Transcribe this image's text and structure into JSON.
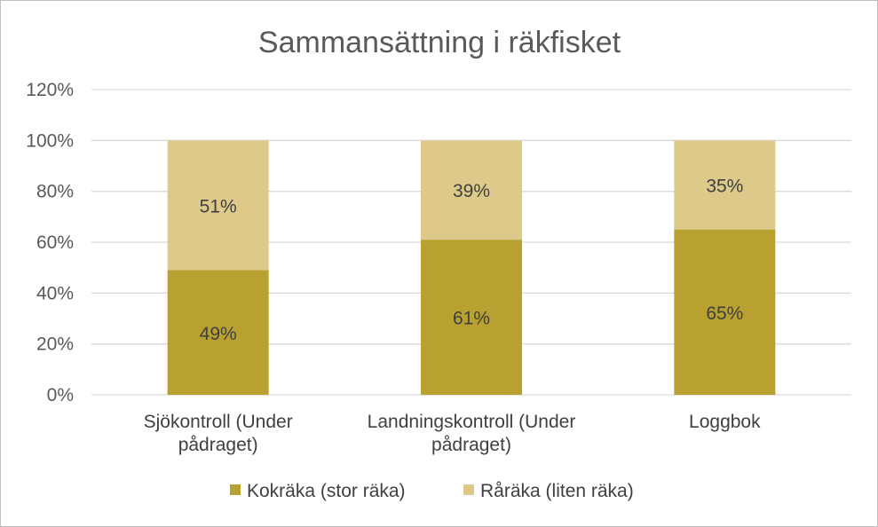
{
  "chart_data": {
    "type": "bar",
    "stacked": true,
    "title": "Sammansättning i räkfisket",
    "categories": [
      [
        "Sjökontroll (Under",
        "pådraget)"
      ],
      [
        "Landningskontroll (Under",
        "pådraget)"
      ],
      [
        "Loggbok"
      ]
    ],
    "series": [
      {
        "name": "Kokräka (stor räka)",
        "color": "#b8a130",
        "values": [
          49,
          61,
          65
        ],
        "labels": [
          "49%",
          "61%",
          "65%"
        ]
      },
      {
        "name": "Råräka (liten räka)",
        "color": "#ddc98a",
        "values": [
          51,
          39,
          35
        ],
        "labels": [
          "51%",
          "39%",
          "35%"
        ]
      }
    ],
    "ylim": [
      0,
      120
    ],
    "yticks": [
      {
        "value": 0,
        "label": "0%"
      },
      {
        "value": 20,
        "label": "20%"
      },
      {
        "value": 40,
        "label": "40%"
      },
      {
        "value": 60,
        "label": "60%"
      },
      {
        "value": 80,
        "label": "80%"
      },
      {
        "value": 100,
        "label": "100%"
      },
      {
        "value": 120,
        "label": "120%"
      }
    ],
    "grid": true,
    "legend_position": "bottom"
  }
}
